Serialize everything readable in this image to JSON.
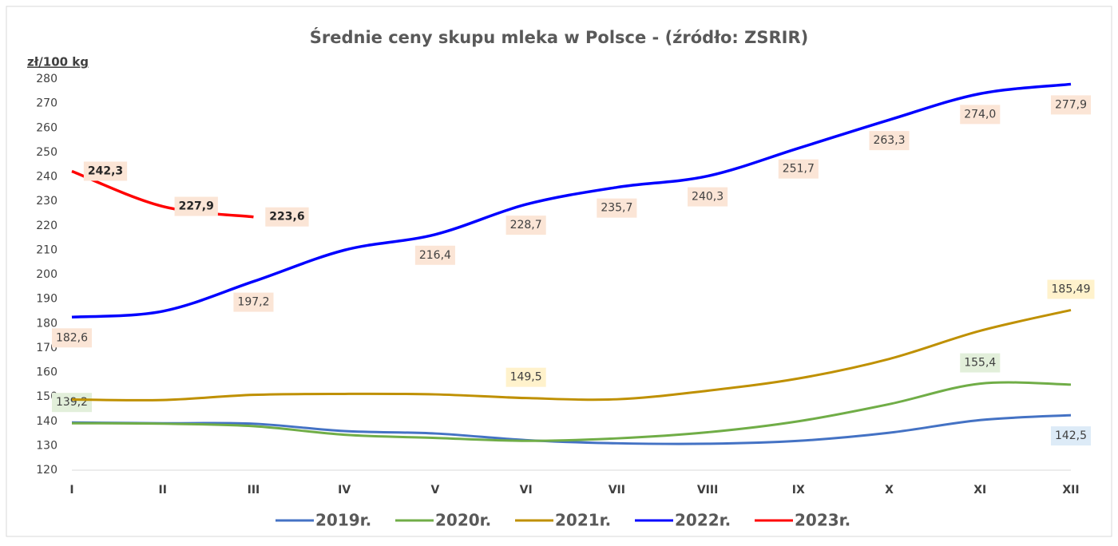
{
  "chart_data": {
    "type": "line",
    "title": "Średnie ceny skupu mleka w Polsce - (źródło: ZSRIR)",
    "y_label": "zł/100 kg",
    "categories": [
      "I",
      "II",
      "III",
      "IV",
      "V",
      "VI",
      "VII",
      "VIII",
      "IX",
      "X",
      "XI",
      "XII"
    ],
    "ylim": [
      120,
      280
    ],
    "yticks": [
      120,
      130,
      140,
      150,
      160,
      170,
      180,
      190,
      200,
      210,
      220,
      230,
      240,
      250,
      260,
      270,
      280
    ],
    "grid": false,
    "legend": "bottom",
    "series": [
      {
        "name": "2019r.",
        "color": "#4472c4",
        "values": [
          139.5,
          139.2,
          139,
          136,
          135,
          132.3,
          131,
          130.8,
          132,
          135.3,
          140.5,
          142.5
        ],
        "value_labels": [
          null,
          null,
          null,
          null,
          null,
          null,
          null,
          null,
          null,
          null,
          null,
          "142,5"
        ]
      },
      {
        "name": "2020r.",
        "color": "#70ad47",
        "values": [
          139.2,
          139,
          138,
          134.5,
          133.2,
          132,
          133,
          135.5,
          140,
          147,
          155.4,
          155
        ],
        "value_labels": [
          "139,2",
          null,
          null,
          null,
          null,
          null,
          null,
          null,
          null,
          null,
          "155,4",
          null
        ]
      },
      {
        "name": "2021r.",
        "color": "#bf9000",
        "values": [
          148.9,
          148.7,
          150.8,
          151.2,
          151,
          149.5,
          149,
          152.5,
          157.5,
          165.5,
          177,
          185.49
        ],
        "value_labels": [
          null,
          null,
          null,
          null,
          null,
          "149,5",
          null,
          null,
          null,
          null,
          null,
          "185,49"
        ]
      },
      {
        "name": "2022r.",
        "color": "#0000ff",
        "values": [
          182.6,
          185,
          197.2,
          210,
          216.4,
          228.7,
          235.7,
          240.3,
          251.7,
          263.3,
          274.0,
          277.9
        ],
        "value_labels": [
          "182,6",
          null,
          "197,2",
          null,
          "216,4",
          "228,7",
          "235,7",
          "240,3",
          "251,7",
          "263,3",
          "274,0",
          "277,9"
        ]
      },
      {
        "name": "2023r.",
        "color": "#ff0000",
        "values": [
          242.3,
          227.9,
          223.6,
          null,
          null,
          null,
          null,
          null,
          null,
          null,
          null,
          null
        ],
        "value_labels": [
          "242,3",
          "227,9",
          "223,6",
          null,
          null,
          null,
          null,
          null,
          null,
          null,
          null,
          null
        ]
      }
    ]
  }
}
